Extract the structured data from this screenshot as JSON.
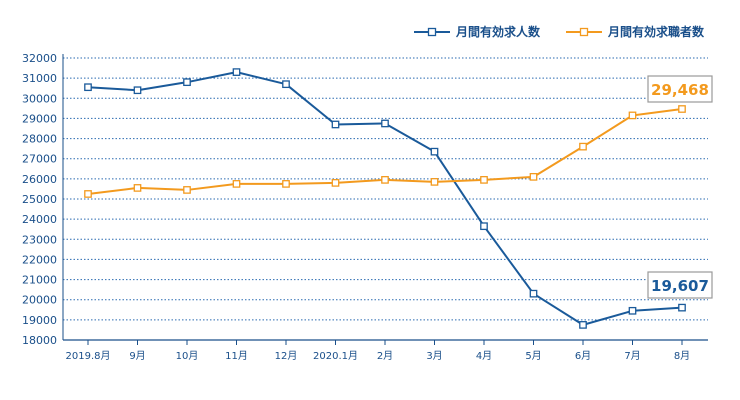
{
  "chart_data": {
    "type": "line",
    "categories": [
      "2019.8月",
      "9月",
      "10月",
      "11月",
      "12月",
      "2020.1月",
      "2月",
      "3月",
      "4月",
      "5月",
      "6月",
      "7月",
      "8月"
    ],
    "ylim": [
      18000,
      32000
    ],
    "yticks": [
      "32000",
      "31000",
      "30000",
      "29000",
      "28000",
      "27000",
      "26000",
      "25000",
      "24000",
      "23000",
      "22000",
      "21000",
      "20000",
      "19000",
      "18000"
    ],
    "grid": true,
    "legend_position": "top-right",
    "series": [
      {
        "name": "月間有効求人数",
        "color": "#1a5a9a",
        "values": [
          30550,
          30400,
          30800,
          31300,
          30700,
          28700,
          28750,
          27350,
          23650,
          20300,
          18750,
          19450,
          19607
        ],
        "callout": "19,607"
      },
      {
        "name": "月間有効求職者数",
        "color": "#f39a1e",
        "values": [
          25250,
          25550,
          25450,
          25750,
          25750,
          25800,
          25950,
          25850,
          25950,
          26100,
          27600,
          29150,
          29468
        ],
        "callout": "29,468"
      }
    ]
  }
}
